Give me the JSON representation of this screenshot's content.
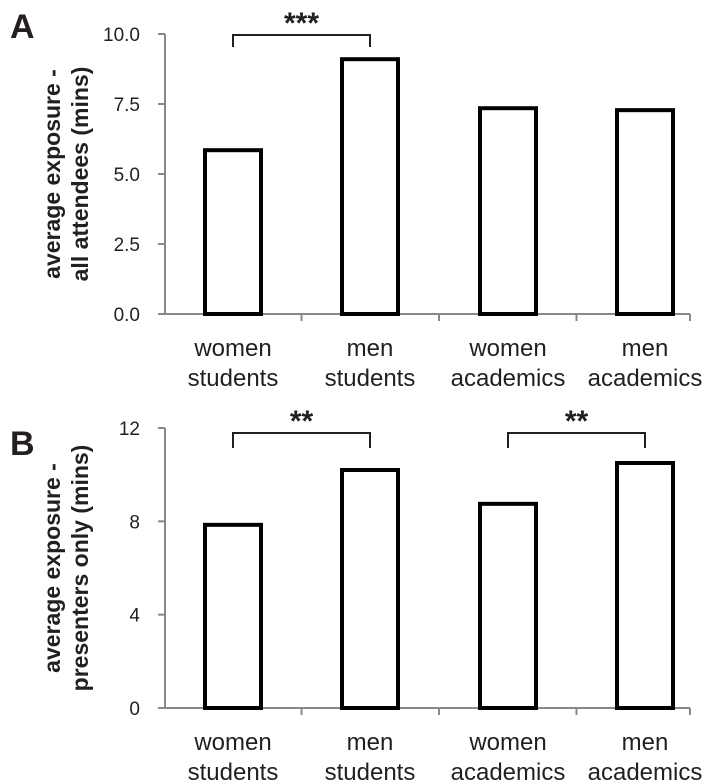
{
  "chart_data": [
    {
      "type": "bar",
      "panel_label": "A",
      "categories": [
        [
          "women",
          "students"
        ],
        [
          "men",
          "students"
        ],
        [
          "women",
          "academics"
        ],
        [
          "men",
          "academics"
        ]
      ],
      "values": [
        5.85,
        9.1,
        7.35,
        7.28
      ],
      "ylabel": [
        "average exposure -",
        "all attendees (mins)"
      ],
      "ylim": [
        0,
        10
      ],
      "yticks": [
        "0.0",
        "2.5",
        "5.0",
        "7.5",
        "10.0"
      ],
      "yticks_values": [
        0,
        2.5,
        5,
        7.5,
        10
      ],
      "grid": false,
      "annotations": [
        {
          "text": "***",
          "from": 0,
          "to": 1
        }
      ],
      "bar_fill": "#ffffff",
      "bar_stroke": "#000000",
      "axis_color": "#888888"
    },
    {
      "type": "bar",
      "panel_label": "B",
      "categories": [
        [
          "women",
          "students"
        ],
        [
          "men",
          "students"
        ],
        [
          "women",
          "academics"
        ],
        [
          "men",
          "academics"
        ]
      ],
      "values": [
        7.85,
        10.2,
        8.75,
        10.5
      ],
      "ylabel": [
        "average exposure -",
        "presenters only (mins)"
      ],
      "ylim": [
        0,
        12
      ],
      "yticks": [
        "0",
        "4",
        "8",
        "12"
      ],
      "yticks_values": [
        0,
        4,
        8,
        12
      ],
      "grid": false,
      "annotations": [
        {
          "text": "**",
          "from": 0,
          "to": 1
        },
        {
          "text": "**",
          "from": 2,
          "to": 3
        }
      ],
      "bar_fill": "#ffffff",
      "bar_stroke": "#000000",
      "axis_color": "#888888"
    }
  ]
}
